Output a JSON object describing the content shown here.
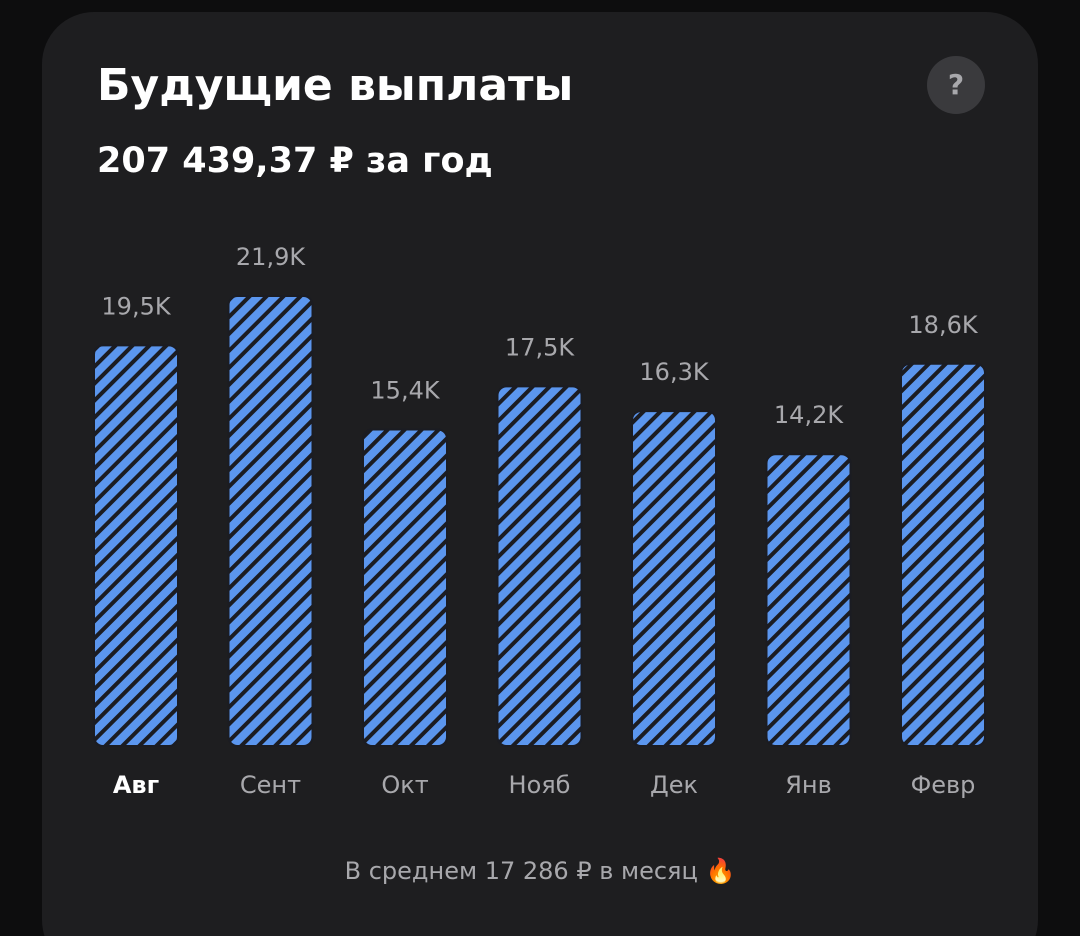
{
  "chart_data": {
    "type": "bar",
    "title": "Будущие выплаты",
    "subtitle": "207 439,37 ₽ за год",
    "help": "?",
    "categories": [
      "Авг",
      "Сент",
      "Окт",
      "Нояб",
      "Дек",
      "Янв",
      "Февр"
    ],
    "values": [
      19.5,
      21.9,
      15.4,
      17.5,
      16.3,
      14.2,
      18.6
    ],
    "value_labels": [
      "19,5K",
      "21,9K",
      "15,4K",
      "17,5K",
      "16,3K",
      "14,2K",
      "18,6K"
    ],
    "color": "#5b96ee",
    "note": "В среднем 17 286 ₽ в месяц 🔥"
  }
}
